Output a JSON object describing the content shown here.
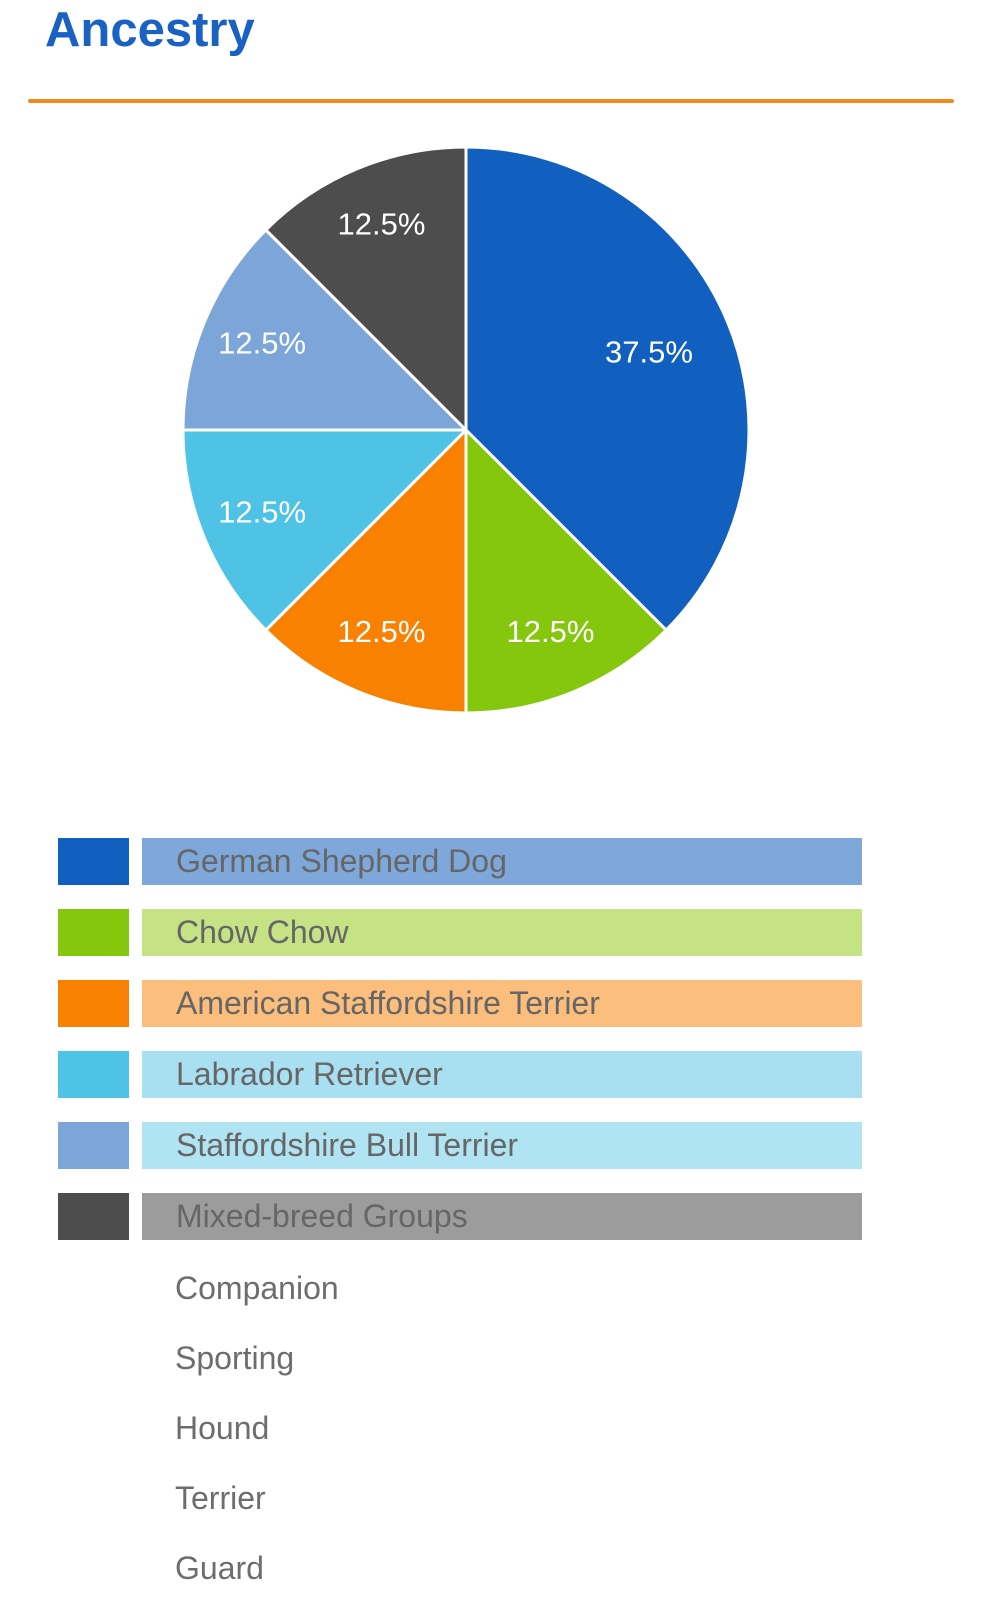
{
  "page": {
    "title": "Ancestry",
    "title_color": "#1961C3",
    "rule_color": "#F18A21",
    "background_color": "#FFFFFF"
  },
  "chart_data": {
    "type": "pie",
    "title": "Ancestry",
    "start_angle_deg": 0,
    "direction": "clockwise",
    "label_text_color": "#FFFFFF",
    "legend_position": "bottom",
    "slices": [
      {
        "label": "German Shepherd Dog",
        "value": 37.5,
        "display": "37.5%",
        "color": "#115FBE",
        "legend_bar_color": "#7EA7DA"
      },
      {
        "label": "Chow Chow",
        "value": 12.5,
        "display": "12.5%",
        "color": "#84C70C",
        "legend_bar_color": "#C5E385"
      },
      {
        "label": "American Staffordshire Terrier",
        "value": 12.5,
        "display": "12.5%",
        "color": "#F88102",
        "legend_bar_color": "#FBBE7D"
      },
      {
        "label": "Labrador Retriever",
        "value": 12.5,
        "display": "12.5%",
        "color": "#4EC3E6",
        "legend_bar_color": "#A9E0F1"
      },
      {
        "label": "Staffordshire Bull Terrier",
        "value": 12.5,
        "display": "12.5%",
        "color": "#7CA6D8",
        "legend_bar_color": "#B0E4F3"
      },
      {
        "label": "Mixed-breed Groups",
        "value": 12.5,
        "display": "12.5%",
        "color": "#4D4D4D",
        "legend_bar_color": "#9C9C9C"
      }
    ],
    "mixed_breed_group_names": [
      "Companion",
      "Sporting",
      "Hound",
      "Terrier",
      "Guard"
    ]
  }
}
